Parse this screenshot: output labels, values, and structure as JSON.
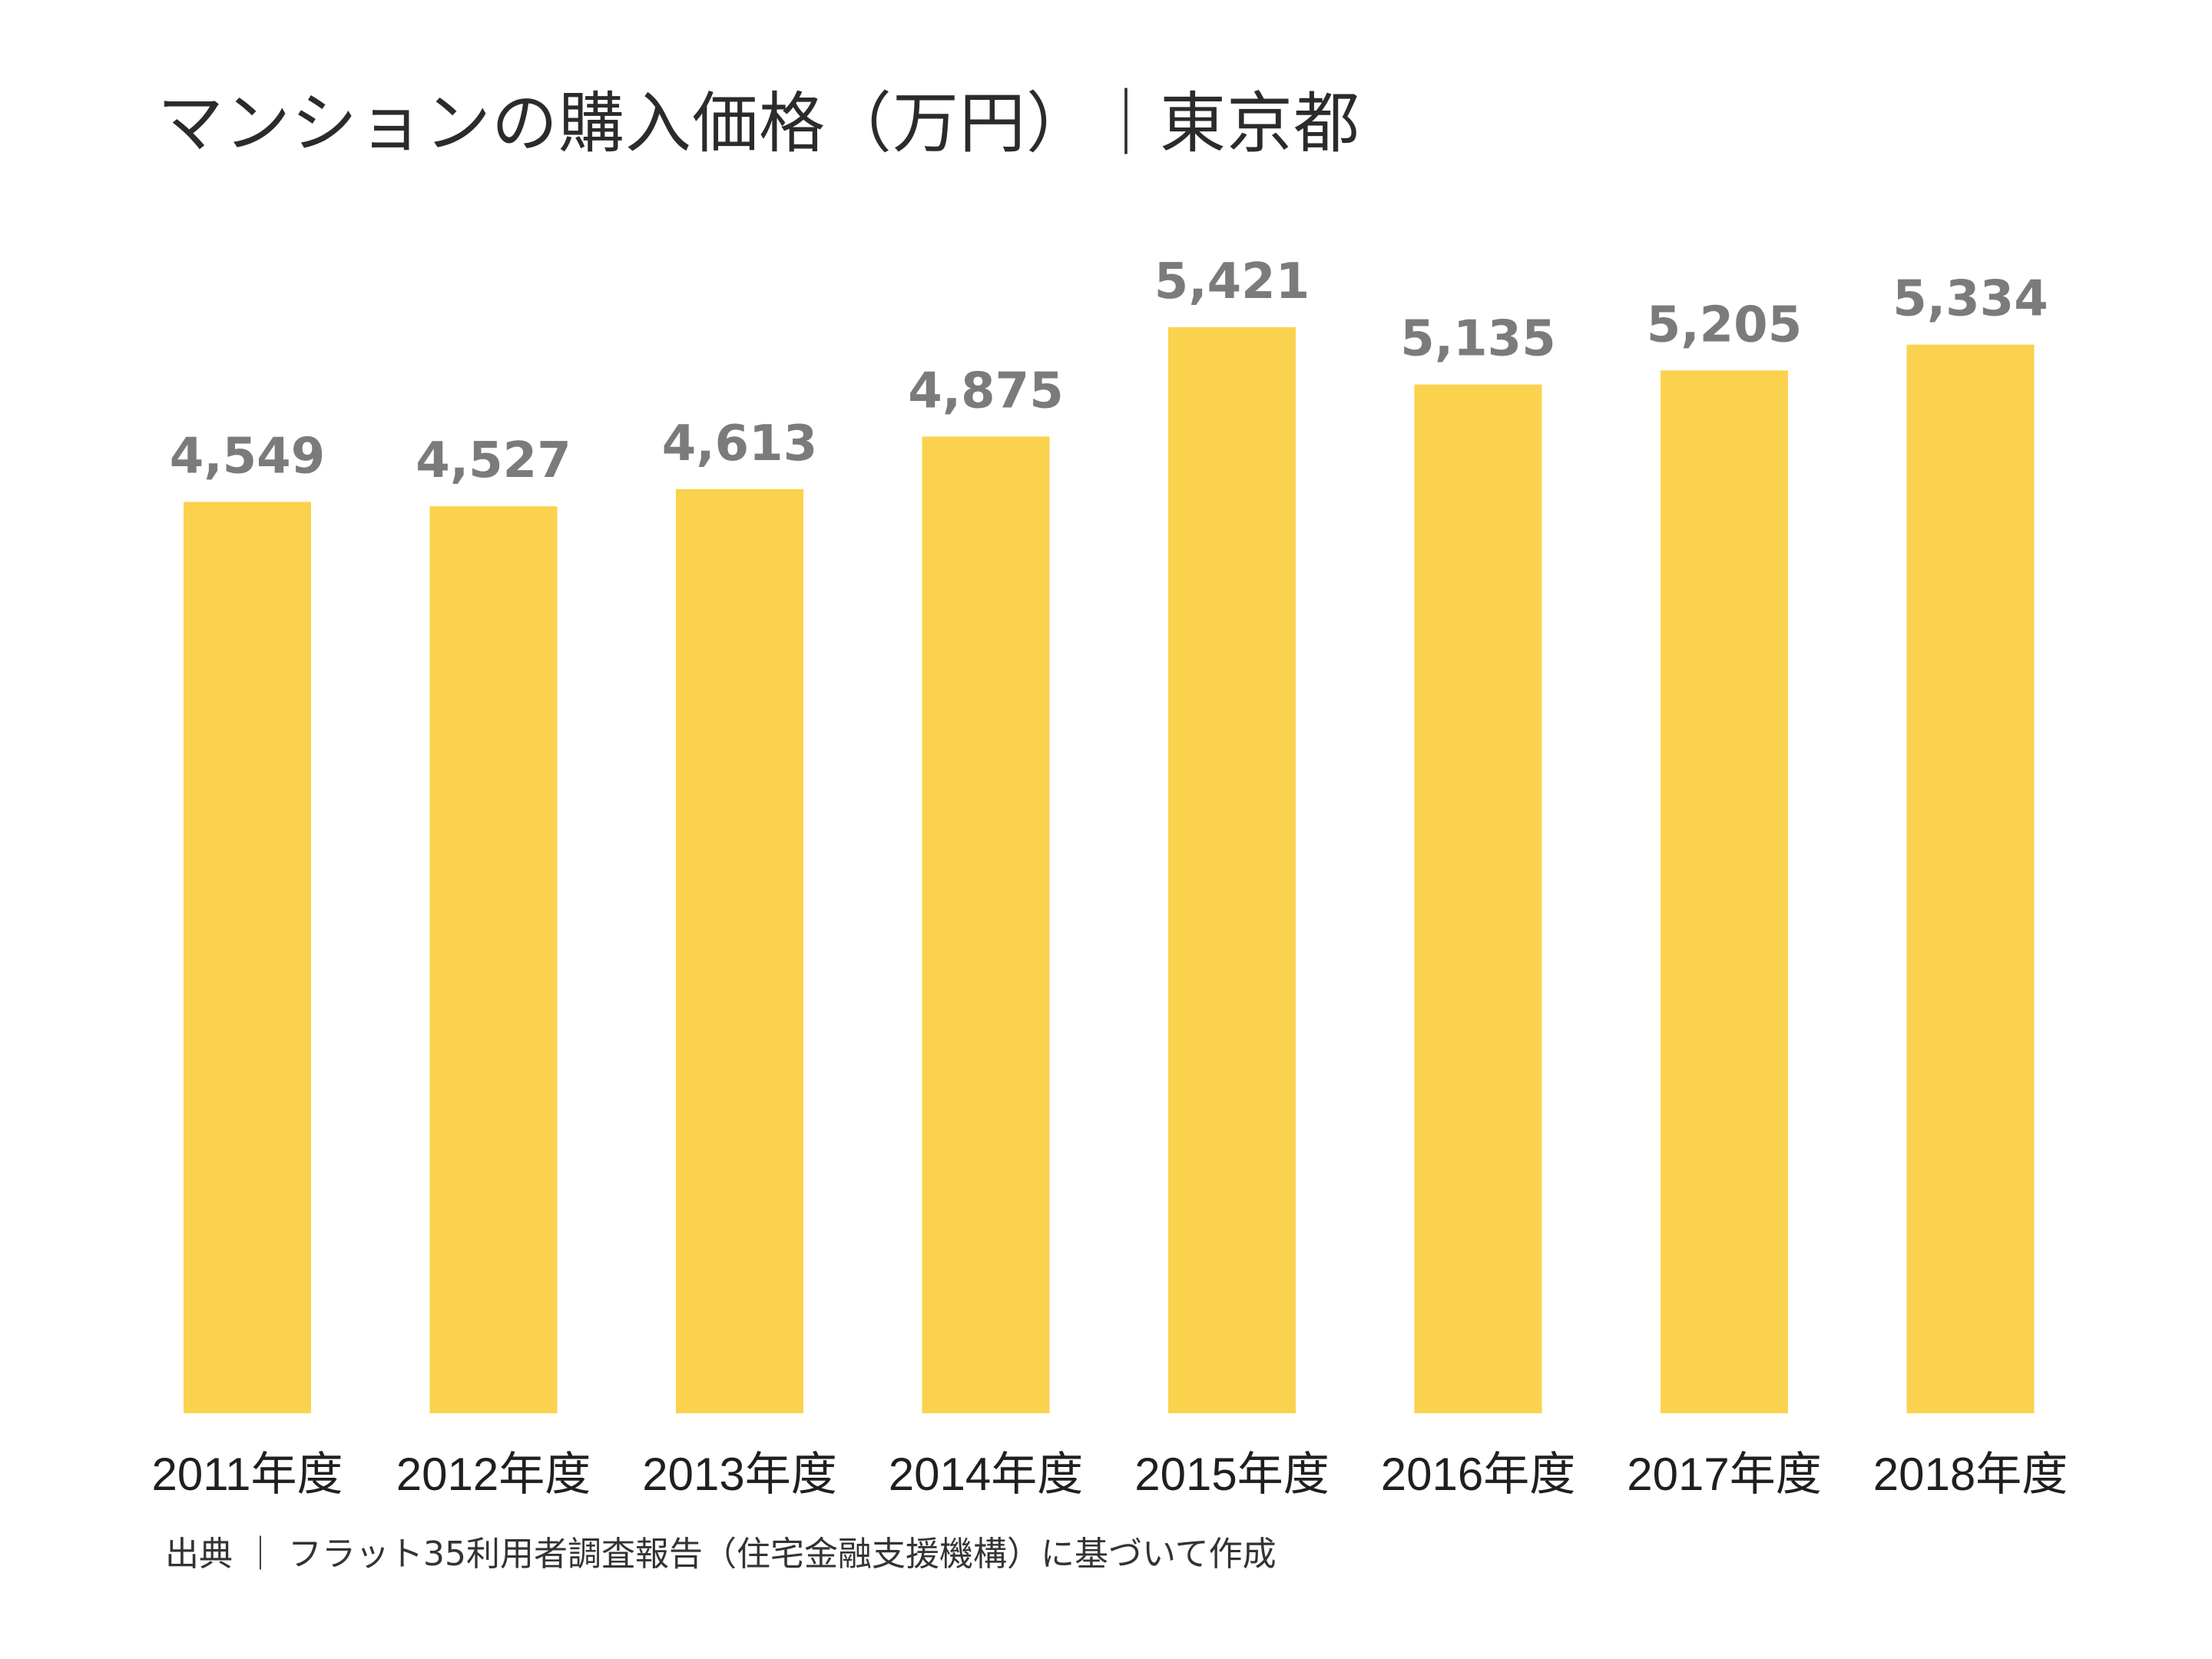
{
  "chart_data": {
    "type": "bar",
    "title": "マンションの購入価格（万円）｜東京都",
    "categories": [
      "2011年度",
      "2012年度",
      "2013年度",
      "2014年度",
      "2015年度",
      "2016年度",
      "2017年度",
      "2018年度"
    ],
    "values": [
      4549,
      4527,
      4613,
      4875,
      5421,
      5135,
      5205,
      5334
    ],
    "value_labels": [
      "4,549",
      "4,527",
      "4,613",
      "4,875",
      "5,421",
      "5,135",
      "5,205",
      "5,334"
    ],
    "xlabel": "",
    "ylabel": "",
    "ylim": [
      0,
      5421
    ],
    "grid": false,
    "legend": "none",
    "bar_color": "#FBD24E",
    "value_label_color": "#7B7B7B"
  },
  "source_note": "出典 ｜ フラット35利用者調査報告（住宅金融支援機構）に基づいて作成"
}
